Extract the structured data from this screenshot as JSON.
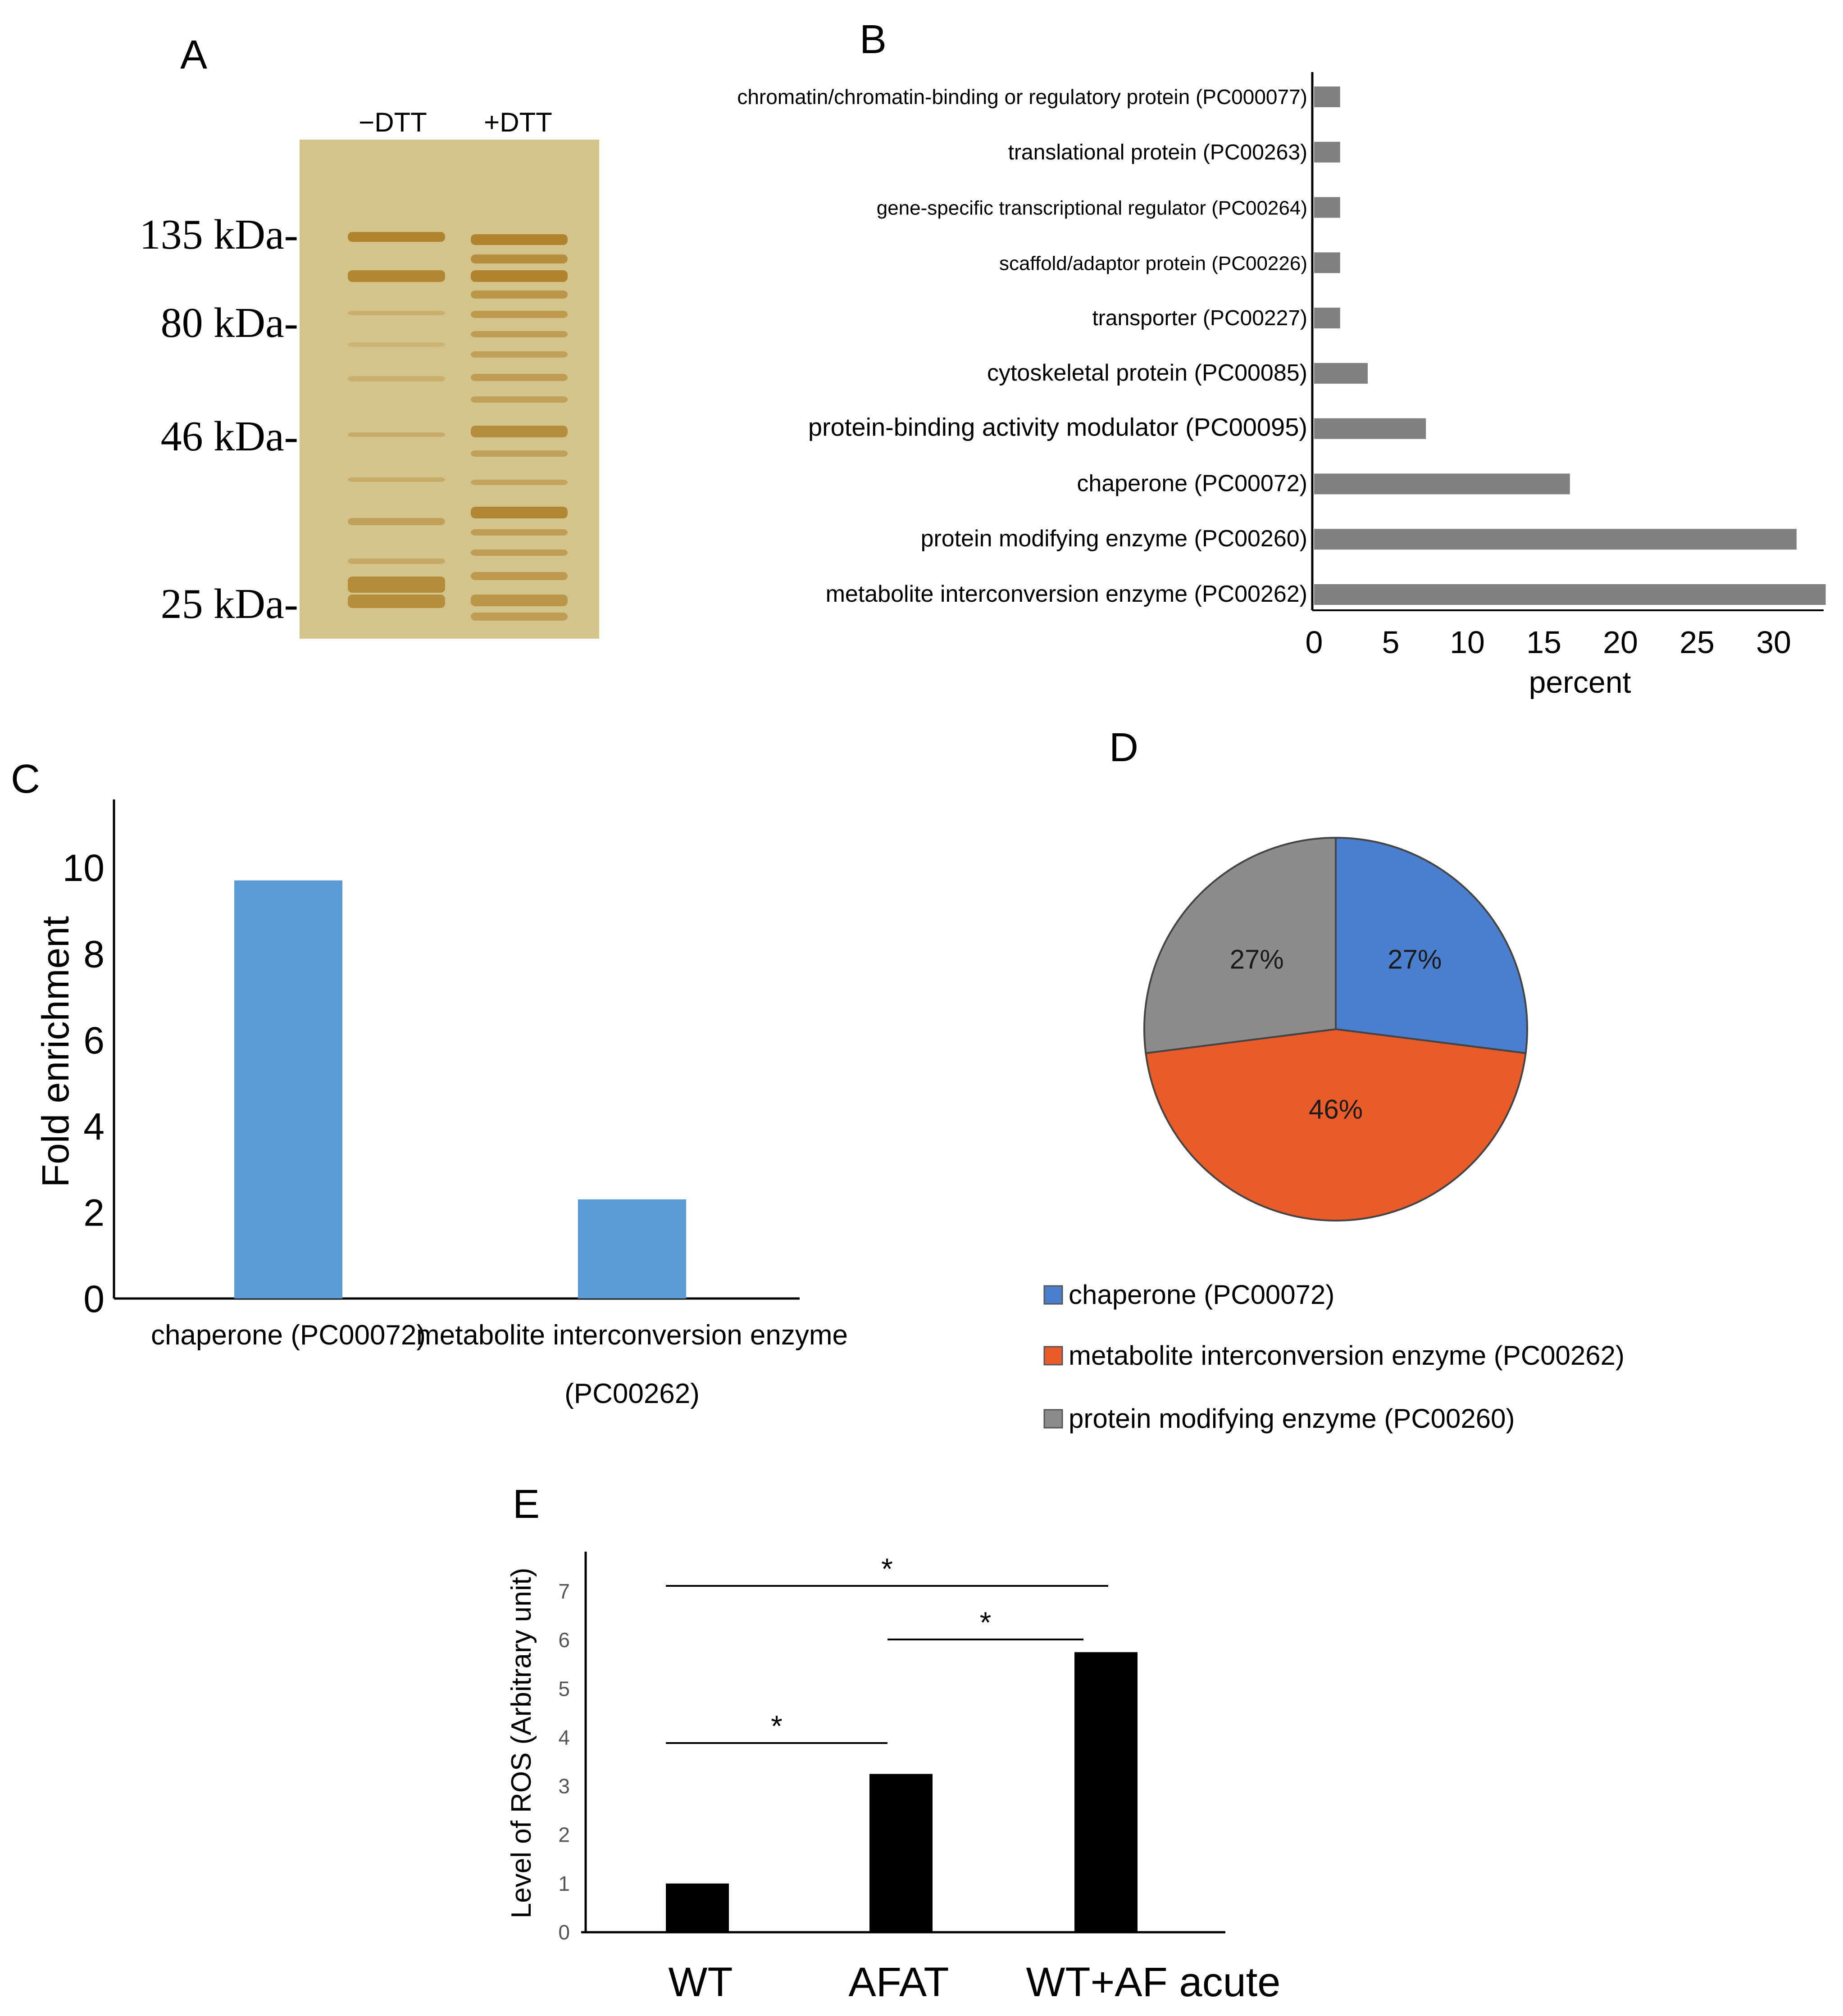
{
  "panels": {
    "A": "A",
    "B": "B",
    "C": "C",
    "D": "D",
    "E": "E"
  },
  "gel": {
    "lanes": [
      "−DTT",
      "+DTT"
    ],
    "markers": [
      {
        "label": "135 kDa-",
        "kda": 135
      },
      {
        "label": "80 kDa-",
        "kda": 80
      },
      {
        "label": "46 kDa-",
        "kda": 46
      },
      {
        "label": "25 kDa-",
        "kda": 25
      }
    ]
  },
  "colors": {
    "gel_bg": "#d4c38a",
    "band": "#a9781e",
    "barB": "#808080",
    "barC": "#5b9bd5",
    "barE": "#000000",
    "pie_blue": "#4a7fd0",
    "pie_orange": "#ea5b2a",
    "pie_gray": "#8c8c8c"
  },
  "chart_data": [
    {
      "panel": "B",
      "type": "bar",
      "orientation": "horizontal",
      "categories": [
        "chromatin/chromatin-binding or regulatory protein (PC000077)",
        "translational protein (PC00263)",
        "gene-specific transcriptional regulator (PC00264)",
        "scaffold/adaptor protein (PC00226)",
        "transporter (PC00227)",
        "cytoskeletal protein (PC00085)",
        "protein-binding activity modulator (PC00095)",
        "chaperone (PC00072)",
        "protein modifying enzyme (PC00260)",
        "metabolite interconversion enzyme (PC00262)"
      ],
      "values": [
        1.7,
        1.7,
        1.7,
        1.7,
        1.7,
        3.5,
        7.3,
        16.7,
        31.5,
        33.4
      ],
      "xlabel": "percent",
      "xticks": [
        0,
        5,
        10,
        15,
        20,
        25,
        30
      ],
      "xlim": [
        0,
        34
      ]
    },
    {
      "panel": "C",
      "type": "bar",
      "categories": [
        "chaperone (PC00072)",
        "metabolite interconversion enzyme (PC00262)"
      ],
      "category_lines": [
        [
          "chaperone (PC00072)"
        ],
        [
          "metabolite interconversion enzyme",
          "(PC00262)"
        ]
      ],
      "values": [
        9.7,
        2.3
      ],
      "ylabel": "Fold enrichment",
      "yticks": [
        0,
        2,
        4,
        6,
        8,
        10
      ],
      "ylim": [
        0,
        11.5
      ]
    },
    {
      "panel": "D",
      "type": "pie",
      "labels": [
        "chaperone (PC00072)",
        "metabolite interconversion enzyme (PC00262)",
        "protein modifying enzyme (PC00260)"
      ],
      "values": [
        27,
        46,
        27
      ],
      "slice_labels": [
        "27%",
        "46%",
        "27%"
      ],
      "legend_position": "bottom-left"
    },
    {
      "panel": "E",
      "type": "bar",
      "categories": [
        "WT",
        "AFAT",
        "WT+AF acute"
      ],
      "values": [
        1.0,
        3.25,
        5.75
      ],
      "ylabel": "Level of ROS (Arbitrary unit)",
      "yticks": [
        0,
        1,
        2,
        3,
        4,
        5,
        6,
        7
      ],
      "ylim": [
        0,
        7.6
      ],
      "significance": [
        {
          "from": 0,
          "to": 1,
          "label": "*"
        },
        {
          "from": 1,
          "to": 2,
          "label": "*"
        },
        {
          "from": 0,
          "to": 2,
          "label": "*"
        }
      ]
    }
  ]
}
